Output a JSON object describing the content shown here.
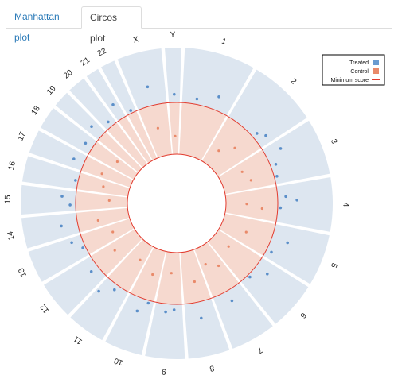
{
  "tabs": [
    {
      "label": "Manhattan plot",
      "active": false
    },
    {
      "label": "Circos plot",
      "active": true
    }
  ],
  "colors": {
    "treated_band": "#dde6f0",
    "treated_point": "#5b8fc9",
    "control_band": "#f6d9cf",
    "min_line": "#e23b2e",
    "legend_treated": "#6a9bd0",
    "legend_control": "#e98a6a"
  },
  "chart_data": {
    "type": "circos",
    "chromosomes": [
      {
        "name": "1",
        "size": 248.9
      },
      {
        "name": "2",
        "size": 242.2
      },
      {
        "name": "3",
        "size": 198.3
      },
      {
        "name": "4",
        "size": 190.2
      },
      {
        "name": "5",
        "size": 181.5
      },
      {
        "name": "6",
        "size": 170.8
      },
      {
        "name": "7",
        "size": 159.3
      },
      {
        "name": "8",
        "size": 145.1
      },
      {
        "name": "9",
        "size": 138.4
      },
      {
        "name": "10",
        "size": 133.8
      },
      {
        "name": "11",
        "size": 135.1
      },
      {
        "name": "12",
        "size": 133.3
      },
      {
        "name": "13",
        "size": 114.4
      },
      {
        "name": "14",
        "size": 107.0
      },
      {
        "name": "15",
        "size": 102.0
      },
      {
        "name": "16",
        "size": 90.3
      },
      {
        "name": "17",
        "size": 83.3
      },
      {
        "name": "18",
        "size": 80.4
      },
      {
        "name": "19",
        "size": 58.6
      },
      {
        "name": "20",
        "size": 64.4
      },
      {
        "name": "21",
        "size": 46.7
      },
      {
        "name": "22",
        "size": 50.8
      },
      {
        "name": "X",
        "size": 156.0
      },
      {
        "name": "Y",
        "size": 57.2
      }
    ],
    "legend": {
      "treated": "Treated",
      "control": "Control",
      "minimum": "Minimum score"
    },
    "treated_points": [
      [
        0,
        0.3,
        0.1
      ],
      [
        0,
        0.7,
        0.25
      ],
      [
        1,
        0.7,
        0.1
      ],
      [
        1,
        0.85,
        0.2
      ],
      [
        2,
        0.2,
        0.3
      ],
      [
        2,
        0.5,
        0.1
      ],
      [
        2,
        0.8,
        0.05
      ],
      [
        3,
        0.3,
        0.15
      ],
      [
        3,
        0.4,
        0.35
      ],
      [
        3,
        0.6,
        0.05
      ],
      [
        4,
        0.4,
        0.3
      ],
      [
        4,
        0.8,
        0.1
      ],
      [
        5,
        0.3,
        0.25
      ],
      [
        5,
        0.7,
        0.05
      ],
      [
        6,
        0.5,
        0.2
      ],
      [
        7,
        0.5,
        0.3
      ],
      [
        8,
        0.3,
        0.1
      ],
      [
        8,
        0.6,
        0.15
      ],
      [
        9,
        0.2,
        0.05
      ],
      [
        9,
        0.5,
        0.25
      ],
      [
        10,
        0.5,
        0.1
      ],
      [
        10,
        0.9,
        0.3
      ],
      [
        11,
        0.5,
        0.15
      ],
      [
        12,
        0.4,
        0.05
      ],
      [
        12,
        0.8,
        0.2
      ],
      [
        13,
        0.5,
        0.3
      ],
      [
        14,
        0.3,
        0.1
      ],
      [
        14,
        0.7,
        0.25
      ],
      [
        15,
        0.5,
        0.05
      ],
      [
        16,
        0.5,
        0.2
      ],
      [
        17,
        0.5,
        0.15
      ],
      [
        18,
        0.5,
        0.25
      ],
      [
        19,
        0.5,
        0.1
      ],
      [
        20,
        0.5,
        0.3
      ],
      [
        21,
        0.5,
        0.05
      ],
      [
        22,
        0.5,
        0.35
      ],
      [
        23,
        0.5,
        0.15
      ]
    ],
    "control_points": [
      [
        1,
        0.3,
        0.35
      ],
      [
        1,
        0.6,
        0.6
      ],
      [
        2,
        0.3,
        0.45
      ],
      [
        2,
        0.7,
        0.55
      ],
      [
        3,
        0.5,
        0.4
      ],
      [
        3,
        0.65,
        0.7
      ],
      [
        4,
        0.55,
        0.5
      ],
      [
        5,
        0.4,
        0.35
      ],
      [
        6,
        0.25,
        0.5
      ],
      [
        6,
        0.75,
        0.35
      ],
      [
        7,
        0.45,
        0.6
      ],
      [
        8,
        0.5,
        0.4
      ],
      [
        9,
        0.4,
        0.5
      ],
      [
        10,
        0.3,
        0.35
      ],
      [
        11,
        0.6,
        0.55
      ],
      [
        12,
        0.5,
        0.4
      ],
      [
        13,
        0.4,
        0.6
      ],
      [
        14,
        0.6,
        0.35
      ],
      [
        15,
        0.5,
        0.5
      ],
      [
        16,
        0.3,
        0.6
      ],
      [
        17,
        0.7,
        0.45
      ],
      [
        22,
        0.5,
        0.55
      ],
      [
        23,
        0.5,
        0.35
      ]
    ]
  }
}
